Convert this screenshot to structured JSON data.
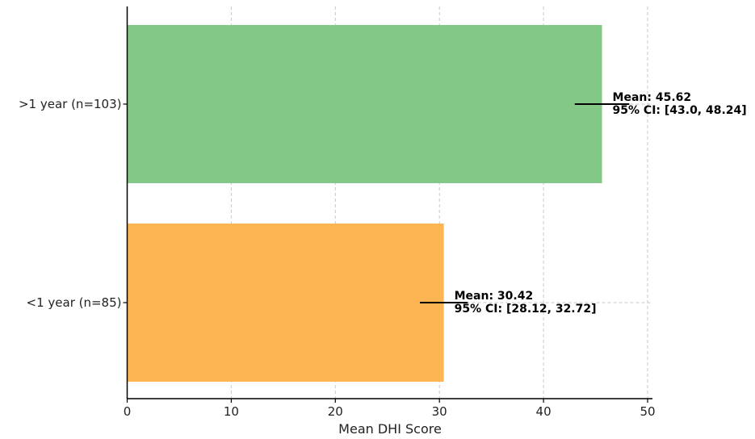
{
  "chart_data": {
    "type": "bar",
    "orientation": "horizontal",
    "categories": [
      ">1 year (n=103)",
      "<1 year (n=85)"
    ],
    "values": [
      45.62,
      30.42
    ],
    "ci": [
      [
        43.0,
        48.24
      ],
      [
        28.12,
        32.72
      ]
    ],
    "colors": [
      "#84c887",
      "#fdb554"
    ],
    "annotations": [
      {
        "line1": "Mean: 45.62",
        "line2": "95% CI: [43.0, 48.24]"
      },
      {
        "line1": "Mean: 30.42",
        "line2": "95% CI: [28.12, 32.72]"
      }
    ],
    "xlabel": "Mean DHI Score",
    "xlim": [
      0,
      50
    ],
    "xticks": [
      0,
      10,
      20,
      30,
      40,
      50
    ],
    "grid": true
  }
}
